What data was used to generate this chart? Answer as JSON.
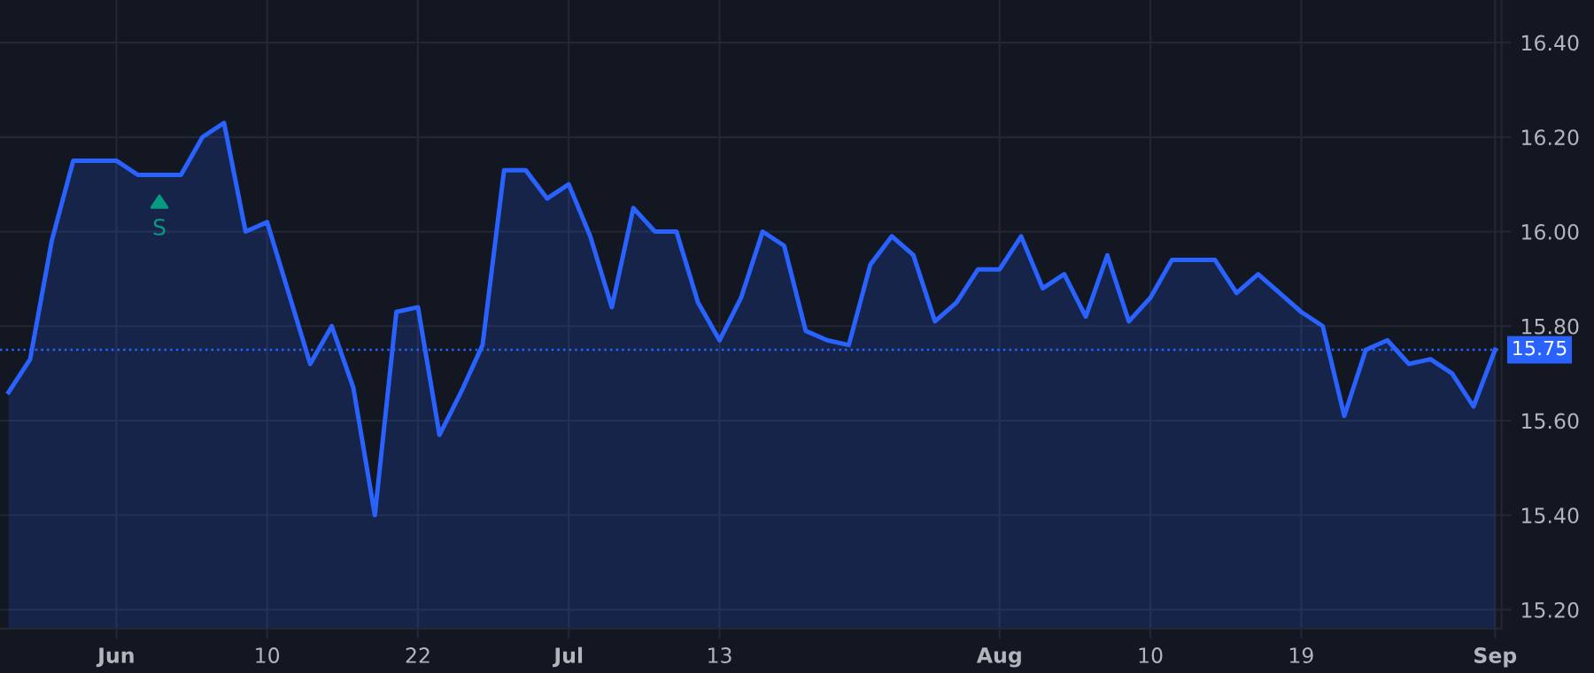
{
  "chart_data": {
    "type": "area",
    "categories": [
      null,
      null,
      null,
      null,
      null,
      "Jun",
      null,
      null,
      null,
      null,
      null,
      null,
      "10",
      null,
      null,
      null,
      null,
      null,
      null,
      "22",
      null,
      null,
      null,
      null,
      null,
      null,
      "Jul",
      null,
      null,
      null,
      null,
      null,
      null,
      "13",
      null,
      null,
      null,
      null,
      null,
      null,
      null,
      null,
      null,
      null,
      null,
      null,
      "Aug",
      null,
      null,
      null,
      null,
      null,
      null,
      "10",
      null,
      null,
      null,
      null,
      null,
      null,
      "19",
      null,
      null,
      null,
      null,
      null,
      null,
      null,
      null,
      "Sep"
    ],
    "series": [
      {
        "color": "#2962ff",
        "values": [
          15.66,
          15.73,
          15.98,
          16.15,
          16.15,
          16.15,
          16.12,
          16.12,
          16.12,
          16.2,
          16.23,
          16.0,
          16.02,
          15.87,
          15.72,
          15.8,
          15.67,
          15.4,
          15.83,
          15.84,
          15.57,
          15.66,
          15.76,
          16.13,
          16.13,
          16.07,
          16.1,
          15.99,
          15.84,
          16.05,
          16.0,
          16.0,
          15.85,
          15.77,
          15.86,
          16.0,
          15.97,
          15.79,
          15.77,
          15.76,
          15.93,
          15.99,
          15.95,
          15.81,
          15.85,
          15.92,
          15.92,
          15.99,
          15.88,
          15.91,
          15.82,
          15.95,
          15.81,
          15.86,
          15.94,
          15.94,
          15.94,
          15.87,
          15.91,
          15.87,
          15.83,
          15.8,
          15.61,
          15.75,
          15.77,
          15.72,
          15.73,
          15.7,
          15.63,
          15.75
        ]
      }
    ],
    "ylim": [
      15.16,
      16.49
    ],
    "yticks": [
      {
        "value": 15.2,
        "label": "15.20"
      },
      {
        "value": 15.4,
        "label": "15.40"
      },
      {
        "value": 15.6,
        "label": "15.60"
      },
      {
        "value": 15.8,
        "label": "15.80"
      },
      {
        "value": 16.0,
        "label": "16.00"
      },
      {
        "value": 16.2,
        "label": "16.20"
      },
      {
        "value": 16.4,
        "label": "16.40"
      }
    ],
    "ref_lines": [
      {
        "axis": "y",
        "value": 15.75,
        "label": "15.75",
        "color": "#2962ff",
        "line_style": "dotted"
      }
    ],
    "annotations": [
      {
        "text": "S",
        "y": 16.12
      }
    ],
    "grid": true
  }
}
